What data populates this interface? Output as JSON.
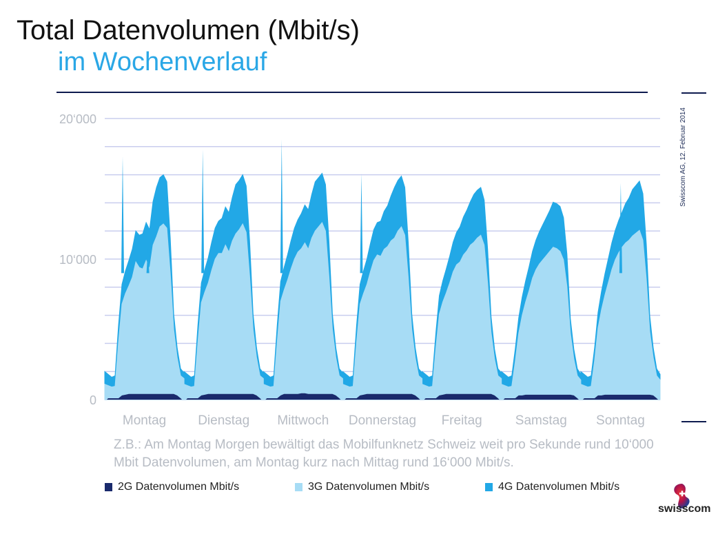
{
  "header": {
    "title": "Total Datenvolumen (Mbit/s)",
    "subtitle": "im Wochenverlauf"
  },
  "side_note": "Swisscom AG, 12. Februar 2014",
  "caption": "Z.B.: Am Montag Morgen bewältigt das Mobilfunknetz Schweiz weit pro Sekunde rund 10‘000 Mbit Datenvolumen, am Montag kurz nach Mittag rund 16‘000 Mbit/s.",
  "logo_text": "swisscom",
  "colors": {
    "2G": "#1a2a6c",
    "3G": "#a7dcf5",
    "4G": "#22a8e6",
    "grid": "#c9cdee",
    "accent": "#2aa7e6"
  },
  "chart_data": {
    "type": "area",
    "stacked": true,
    "ylim": [
      0,
      20000
    ],
    "ytick_labels": [
      "0",
      "10‘000",
      "20‘000"
    ],
    "yticks": [
      0,
      10000,
      20000
    ],
    "grid_step": 2000,
    "categories": [
      "Montag",
      "Dienstag",
      "Mittwoch",
      "Donnerstag",
      "Freitag",
      "Samstag",
      "Sonntag"
    ],
    "x_points_per_day": 24,
    "series": [
      {
        "name": "2G Datenvolumen Mbit/s",
        "key": "2G",
        "days": [
          [
            100,
            100,
            100,
            100,
            100,
            300,
            350,
            400,
            400,
            400,
            400,
            400,
            400,
            400,
            400,
            400,
            400,
            400,
            400,
            400,
            400,
            300,
            100,
            100
          ],
          [
            100,
            100,
            100,
            100,
            100,
            300,
            350,
            400,
            400,
            400,
            400,
            400,
            400,
            400,
            400,
            400,
            400,
            400,
            400,
            400,
            400,
            300,
            100,
            100
          ],
          [
            100,
            100,
            100,
            100,
            100,
            300,
            400,
            400,
            400,
            400,
            400,
            450,
            450,
            400,
            400,
            400,
            400,
            400,
            400,
            400,
            400,
            300,
            100,
            100
          ],
          [
            100,
            100,
            100,
            100,
            100,
            300,
            350,
            400,
            400,
            400,
            400,
            400,
            400,
            400,
            400,
            400,
            400,
            400,
            400,
            400,
            400,
            300,
            100,
            100
          ],
          [
            100,
            100,
            100,
            100,
            100,
            300,
            350,
            400,
            400,
            400,
            400,
            400,
            400,
            400,
            400,
            400,
            400,
            400,
            400,
            400,
            400,
            300,
            100,
            100
          ],
          [
            100,
            100,
            100,
            100,
            100,
            300,
            300,
            350,
            350,
            350,
            350,
            350,
            350,
            350,
            350,
            350,
            350,
            350,
            350,
            350,
            350,
            300,
            100,
            100
          ],
          [
            100,
            100,
            100,
            100,
            100,
            300,
            300,
            350,
            350,
            350,
            350,
            350,
            350,
            350,
            350,
            350,
            350,
            350,
            350,
            350,
            350,
            300,
            100,
            100
          ]
        ]
      },
      {
        "name": "3G Datenvolumen Mbit/s",
        "key": "3G",
        "days": [
          [
            1000,
            900,
            800,
            850,
            4000,
            6500,
            7200,
            7700,
            8300,
            9400,
            9000,
            8900,
            9500,
            8900,
            10600,
            11200,
            11900,
            12100,
            11800,
            8600,
            4600,
            2700,
            1600,
            1400
          ],
          [
            1000,
            900,
            800,
            850,
            4000,
            6600,
            7300,
            7900,
            8800,
            9600,
            10000,
            10000,
            10600,
            10100,
            10900,
            11400,
            11700,
            12100,
            11500,
            8400,
            4600,
            2700,
            1600,
            1400
          ],
          [
            1000,
            900,
            800,
            850,
            4000,
            6700,
            7400,
            8100,
            8900,
            9600,
            10100,
            10300,
            10700,
            10300,
            11100,
            11600,
            11900,
            12200,
            11600,
            8400,
            4600,
            2700,
            1600,
            1400
          ],
          [
            1000,
            900,
            800,
            850,
            4000,
            6500,
            7200,
            7800,
            8700,
            9500,
            9900,
            9800,
            10300,
            10500,
            10900,
            11100,
            11600,
            11900,
            11300,
            8300,
            4600,
            2700,
            1600,
            1400
          ],
          [
            1000,
            900,
            800,
            850,
            3600,
            5800,
            6600,
            7200,
            7900,
            8700,
            9200,
            9400,
            9900,
            10200,
            10600,
            10800,
            11100,
            11300,
            10600,
            7900,
            4400,
            2600,
            1600,
            1400
          ],
          [
            1000,
            900,
            800,
            850,
            2600,
            4400,
            5700,
            6600,
            7400,
            8300,
            8900,
            9300,
            9600,
            9900,
            10200,
            10500,
            10400,
            10200,
            9600,
            7700,
            4400,
            2600,
            1600,
            1300
          ],
          [
            1000,
            900,
            800,
            850,
            2700,
            4800,
            6100,
            7100,
            8000,
            8900,
            9600,
            10100,
            10500,
            10800,
            11000,
            11300,
            11500,
            11700,
            11000,
            8200,
            4500,
            2700,
            1600,
            1300
          ]
        ]
      },
      {
        "name": "4G Datenvolumen Mbit/s",
        "key": "4G",
        "days": [
          [
            900,
            800,
            700,
            750,
            1200,
            1400,
            1600,
            1800,
            2000,
            2200,
            2300,
            2500,
            2700,
            2800,
            3100,
            3500,
            3500,
            3500,
            3300,
            2500,
            1100,
            700,
            500,
            400
          ],
          [
            900,
            800,
            700,
            750,
            1200,
            1400,
            1600,
            1800,
            2000,
            2200,
            2300,
            2500,
            2700,
            2800,
            3100,
            3500,
            3500,
            3500,
            3300,
            2500,
            1100,
            700,
            500,
            400
          ],
          [
            900,
            800,
            700,
            750,
            1200,
            1400,
            1600,
            1800,
            2000,
            2200,
            2300,
            2500,
            2700,
            2800,
            3100,
            3500,
            3500,
            3500,
            3300,
            2500,
            1100,
            700,
            500,
            400
          ],
          [
            900,
            800,
            700,
            750,
            1200,
            1400,
            1600,
            1800,
            2000,
            2200,
            2300,
            2500,
            2700,
            2900,
            3200,
            3600,
            3600,
            3600,
            3400,
            2500,
            1100,
            700,
            500,
            400
          ],
          [
            900,
            800,
            700,
            750,
            1100,
            1300,
            1500,
            1700,
            1900,
            2100,
            2300,
            2500,
            2700,
            2900,
            3100,
            3400,
            3400,
            3400,
            3200,
            2400,
            1100,
            700,
            500,
            400
          ],
          [
            900,
            800,
            700,
            750,
            900,
            1100,
            1300,
            1500,
            1700,
            1900,
            2100,
            2300,
            2500,
            2700,
            2900,
            3200,
            3200,
            3200,
            3000,
            2300,
            1000,
            700,
            500,
            400
          ],
          [
            900,
            800,
            700,
            750,
            900,
            1100,
            1300,
            1500,
            1700,
            1900,
            2100,
            2300,
            2500,
            2800,
            3000,
            3300,
            3400,
            3500,
            3300,
            2500,
            1100,
            700,
            500,
            400
          ]
        ]
      }
    ],
    "spikes": [
      {
        "day": 0,
        "hour": 5.2,
        "top": 17300
      },
      {
        "day": 0,
        "hour": 12.5,
        "top": 10800
      },
      {
        "day": 1,
        "hour": 5.4,
        "top": 17800
      },
      {
        "day": 2,
        "hour": 5.3,
        "top": 18500
      },
      {
        "day": 3,
        "hour": 5.4,
        "top": 16100
      },
      {
        "day": 6,
        "hour": 11.6,
        "top": 15400
      }
    ],
    "legend_placement": "bottom",
    "grid": true
  }
}
